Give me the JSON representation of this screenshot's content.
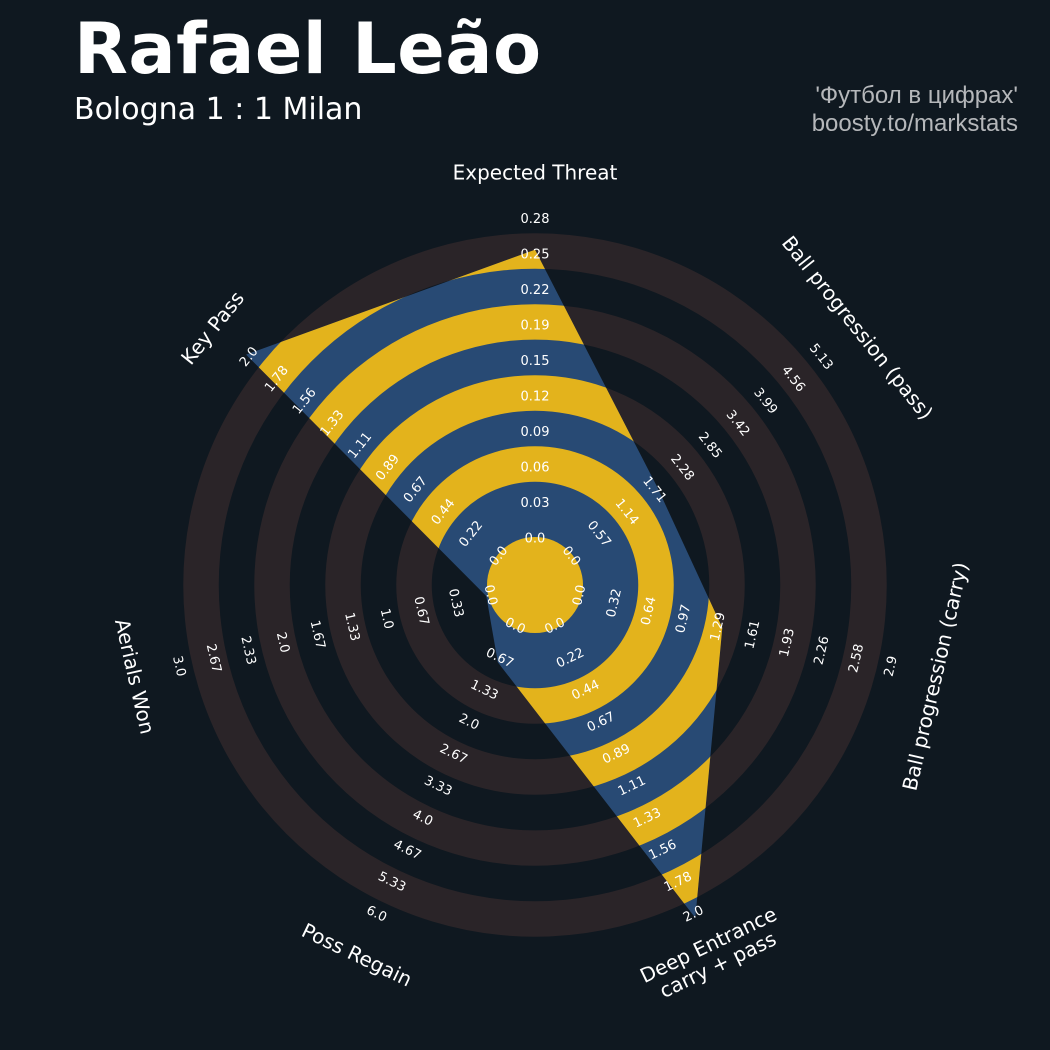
{
  "header": {
    "player": "Rafael Leão",
    "match": "Bologna 1 : 1 Milan",
    "credit_line1": "'Футбол в цифрах'",
    "credit_line2": "boosty.to/markstats"
  },
  "colors": {
    "background": "#0f1820",
    "ring_band": "#2a2428",
    "player_fill": "#284a74",
    "player_stripe": "#e3b31c",
    "text": "#ffffff"
  },
  "chart_data": {
    "type": "radar",
    "title": "Rafael Leão",
    "subtitle": "Bologna 1 : 1 Milan",
    "categories": [
      "Expected Threat",
      "Ball progression (pass)",
      "Ball progression (carry)",
      "Deep Entrance\ncarry + pass",
      "Poss Regain",
      "Aerials Won",
      "Key Pass"
    ],
    "ranges": [
      {
        "min": 0.0,
        "max": 0.28
      },
      {
        "min": 0.0,
        "max": 5.13
      },
      {
        "min": 0.0,
        "max": 2.9
      },
      {
        "min": 0.0,
        "max": 2.0
      },
      {
        "min": 0.0,
        "max": 6.0
      },
      {
        "min": 0.0,
        "max": 3.0
      },
      {
        "min": 0.0,
        "max": 2.0
      }
    ],
    "tick_labels": [
      [
        "0.0",
        "0.03",
        "0.06",
        "0.09",
        "0.12",
        "0.15",
        "0.19",
        "0.22",
        "0.25",
        "0.28"
      ],
      [
        "0.0",
        "0.57",
        "1.14",
        "1.71",
        "2.28",
        "2.85",
        "3.42",
        "3.99",
        "4.56",
        "5.13"
      ],
      [
        "0.0",
        "0.32",
        "0.64",
        "0.97",
        "1.29",
        "1.61",
        "1.93",
        "2.26",
        "2.58",
        "2.9"
      ],
      [
        "0.0",
        "0.22",
        "0.44",
        "0.67",
        "0.89",
        "1.11",
        "1.33",
        "1.56",
        "1.78",
        "2.0"
      ],
      [
        "0.0",
        "0.67",
        "1.33",
        "2.0",
        "2.67",
        "3.33",
        "4.0",
        "4.67",
        "5.33",
        "6.0"
      ],
      [
        "0.0",
        "0.33",
        "0.67",
        "1.0",
        "1.33",
        "1.67",
        "2.0",
        "2.33",
        "2.67",
        "3.0"
      ],
      [
        "0.0",
        "0.22",
        "0.44",
        "0.67",
        "0.89",
        "1.11",
        "1.33",
        "1.56",
        "1.78",
        "2.0"
      ]
    ],
    "series": [
      {
        "values": [
          0.25,
          1.71,
          1.29,
          2.0,
          0.67,
          0.0,
          2.0
        ]
      }
    ],
    "grid": true
  }
}
